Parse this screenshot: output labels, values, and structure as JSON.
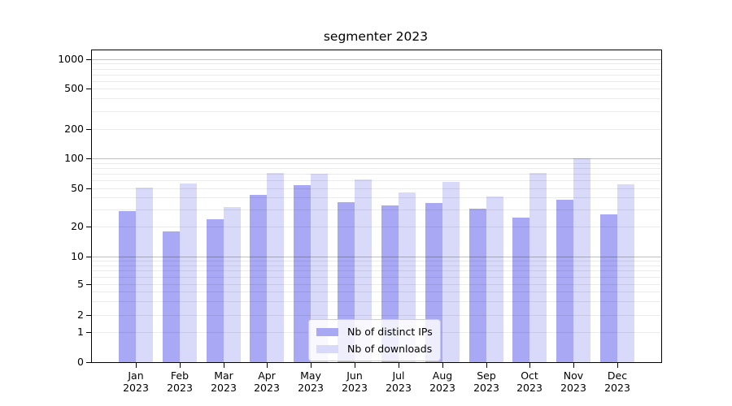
{
  "title": "segmenter 2023",
  "chart_data": {
    "type": "bar",
    "title": "segmenter 2023",
    "categories": [
      "Jan 2023",
      "Feb 2023",
      "Mar 2023",
      "Apr 2023",
      "May 2023",
      "Jun 2023",
      "Jul 2023",
      "Aug 2023",
      "Sep 2023",
      "Oct 2023",
      "Nov 2023",
      "Dec 2023"
    ],
    "x_tick_months": [
      "Jan",
      "Feb",
      "Mar",
      "Apr",
      "May",
      "Jun",
      "Jul",
      "Aug",
      "Sep",
      "Oct",
      "Nov",
      "Dec"
    ],
    "x_tick_year": "2023",
    "series": [
      {
        "name": "Nb of distinct IPs",
        "color": "#a8a8f5",
        "values": [
          29,
          18,
          24,
          43,
          54,
          36,
          33,
          35,
          31,
          25,
          38,
          27
        ]
      },
      {
        "name": "Nb of downloads",
        "color": "#d9d9fa",
        "values": [
          51,
          56,
          32,
          72,
          70,
          62,
          45,
          58,
          41,
          72,
          100,
          55
        ]
      }
    ],
    "yscale": "asinh (log-like above 1, 0 shown at baseline)",
    "yticks": [
      0,
      1,
      2,
      5,
      10,
      20,
      50,
      100,
      200,
      500,
      1000
    ],
    "ylim": [
      0,
      1000
    ],
    "grid": "horizontal major + minor gridlines, drawn over bars",
    "legend_position": "lower center inside plot"
  },
  "legend": {
    "items": [
      {
        "label": "Nb of distinct IPs",
        "color": "#a8a8f5"
      },
      {
        "label": "Nb of downloads",
        "color": "#d9d9fa"
      }
    ]
  },
  "colors": {
    "series_distinct_ips": "#a8a8f5",
    "series_downloads": "#d9d9fa",
    "grid_major": "rgba(0,0,0,0.25)",
    "grid_minor": "rgba(0,0,0,0.08)",
    "spine": "#000000",
    "legend_border": "#cccccc",
    "background": "#ffffff"
  }
}
